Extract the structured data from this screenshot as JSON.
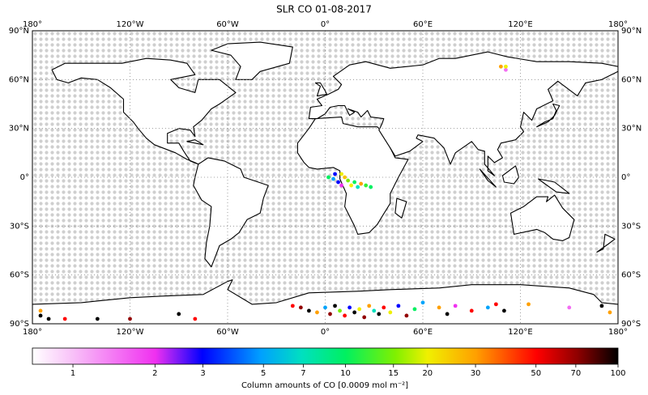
{
  "map": {
    "title": "SLR CO 01-08-2017",
    "xlim": [
      -180,
      180
    ],
    "ylim": [
      -90,
      90
    ],
    "lon_ticks": [
      {
        "value": -180,
        "label": "180°"
      },
      {
        "value": -120,
        "label": "120°W"
      },
      {
        "value": -60,
        "label": "60°W"
      },
      {
        "value": 0,
        "label": "0°"
      },
      {
        "value": 60,
        "label": "60°E"
      },
      {
        "value": 120,
        "label": "120°E"
      },
      {
        "value": 180,
        "label": "180°"
      }
    ],
    "lat_ticks": [
      {
        "value": 90,
        "label": "90°N"
      },
      {
        "value": 60,
        "label": "60°N"
      },
      {
        "value": 30,
        "label": "30°N"
      },
      {
        "value": 0,
        "label": "0°"
      },
      {
        "value": -30,
        "label": "30°S"
      },
      {
        "value": -60,
        "label": "60°S"
      },
      {
        "value": -90,
        "label": "90°S"
      }
    ],
    "grid": true,
    "colorbar": {
      "log": true,
      "lim": [
        0.71,
        100
      ],
      "ticks": [
        1,
        2,
        3,
        5,
        7,
        10,
        15,
        20,
        30,
        50,
        70,
        100
      ],
      "label": "Column amounts of CO [0.0009 mol m⁻²]"
    },
    "points": {
      "lon": [
        2,
        5,
        8,
        10,
        12,
        14,
        16,
        18,
        20,
        22,
        25,
        28,
        6,
        10,
        108,
        111,
        111,
        -20,
        -15,
        -10,
        -5,
        0,
        3,
        6,
        9,
        12,
        15,
        18,
        21,
        24,
        27,
        30,
        33,
        36,
        40,
        45,
        50,
        55,
        60,
        70,
        75,
        80,
        90,
        100,
        105,
        110,
        125,
        150,
        170,
        175,
        -175,
        -170,
        -160,
        -140,
        -120,
        -90,
        -80,
        -175
      ],
      "lat": [
        0,
        -1,
        -3,
        2,
        0,
        -2,
        -5,
        -3,
        -6,
        -4,
        -5,
        -6,
        2,
        -5,
        68,
        66,
        68,
        -79,
        -80,
        -82,
        -83,
        -80,
        -84,
        -79,
        -82,
        -85,
        -80,
        -83,
        -81,
        -86,
        -79,
        -82,
        -84,
        -80,
        -83,
        -79,
        -85,
        -81,
        -77,
        -80,
        -84,
        -79,
        -82,
        -80,
        -78,
        -82,
        -78,
        -80,
        -79,
        -83,
        -85,
        -87,
        -87,
        -87,
        -87,
        -84,
        -87,
        -82
      ],
      "values": [
        10,
        5,
        3,
        20,
        25,
        15,
        20,
        10,
        7,
        30,
        12,
        10,
        3,
        2,
        30,
        1.5,
        20,
        50,
        70,
        100,
        30,
        5,
        70,
        100,
        15,
        50,
        3,
        100,
        20,
        70,
        30,
        7,
        100,
        50,
        20,
        3,
        70,
        10,
        5,
        30,
        100,
        2,
        50,
        5,
        50,
        100,
        30,
        1.5,
        100,
        30,
        100,
        100,
        50,
        100,
        70,
        100,
        50,
        30
      ]
    }
  }
}
